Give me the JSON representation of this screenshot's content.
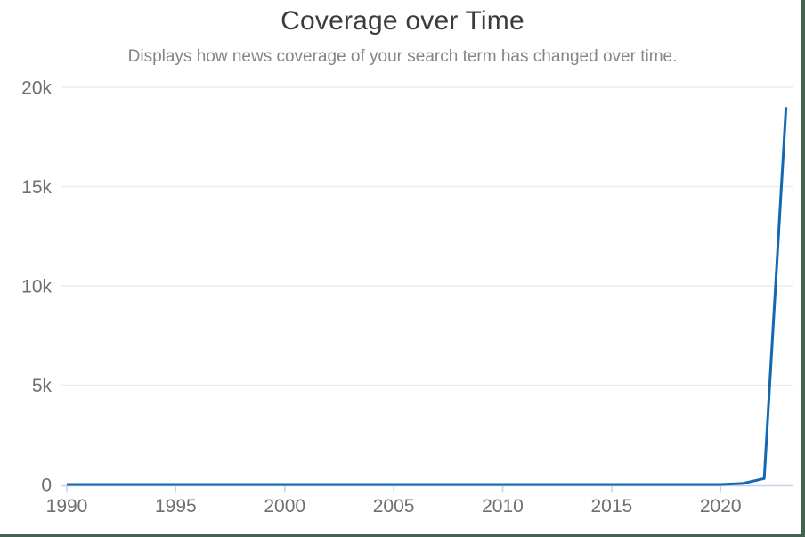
{
  "page": {
    "border_color": "#45614f",
    "background": "#ffffff"
  },
  "chart_data": {
    "type": "line",
    "title": "Coverage over Time",
    "subtitle": "Displays how news coverage of your search term has changed over time.",
    "points": [
      [
        1990,
        0
      ],
      [
        1995,
        0
      ],
      [
        2000,
        0
      ],
      [
        2005,
        0
      ],
      [
        2010,
        0
      ],
      [
        2015,
        0
      ],
      [
        2020,
        0
      ],
      [
        2021,
        50
      ],
      [
        2022,
        300
      ],
      [
        2023,
        19000
      ]
    ],
    "xlim": [
      1990,
      2023.3
    ],
    "ylim": [
      0,
      20000
    ],
    "x_tick_values": [
      1990,
      1995,
      2000,
      2005,
      2010,
      2015,
      2020
    ],
    "x_tick_labels": [
      "1990",
      "1995",
      "2000",
      "2005",
      "2010",
      "2015",
      "2020"
    ],
    "y_tick_values": [
      0,
      5000,
      10000,
      15000,
      20000
    ],
    "y_tick_labels": [
      "0",
      "5k",
      "10k",
      "15k",
      "20k"
    ],
    "grid": "horizontal",
    "legend": "none",
    "line_color": "#1268b1",
    "axis_color": "#c6d0ec",
    "grid_color": "#ececec",
    "label_color": "#6f6f6f"
  }
}
